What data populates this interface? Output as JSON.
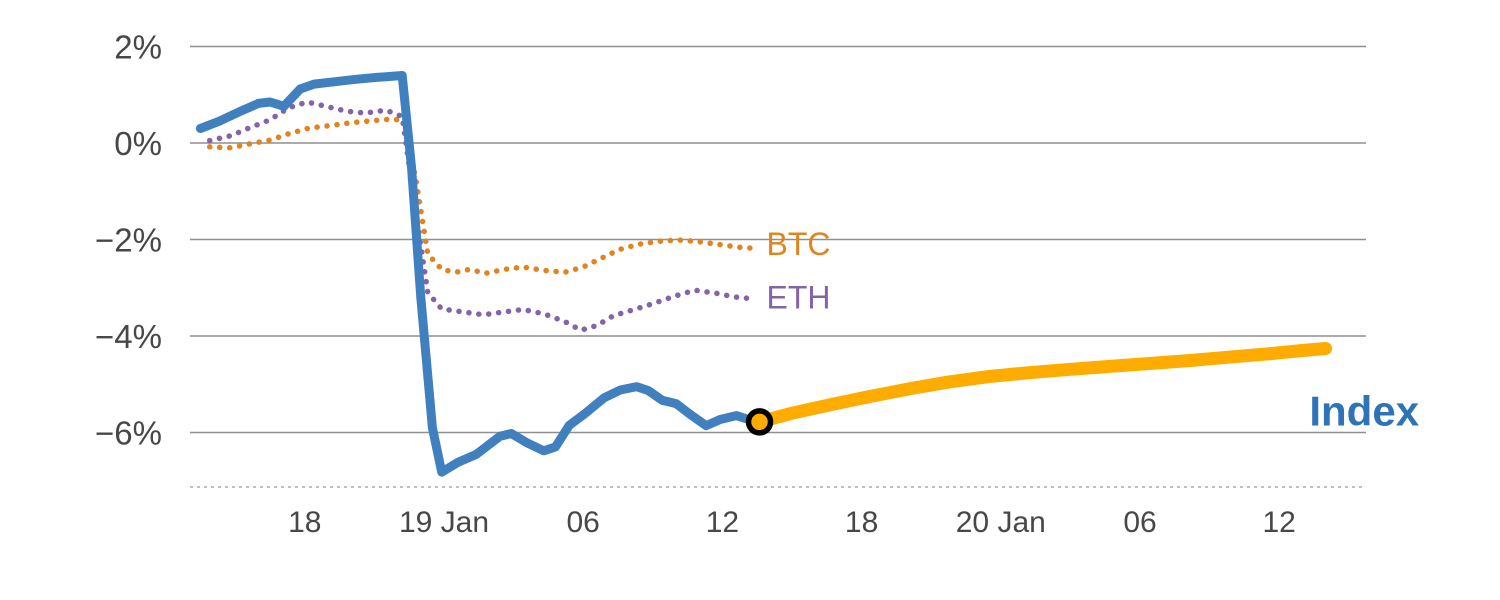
{
  "chart_data": {
    "type": "line",
    "title": "",
    "xlabel": "",
    "ylabel": "",
    "x_unit": "hours, t=12 corresponds to 19 Jan 00:00",
    "xlim": [
      0.8,
      51.5
    ],
    "ylim": [
      -7.3,
      2.4
    ],
    "grid": "horizontal",
    "legend_position": "inline-labels",
    "background_color": "#ffffff",
    "y_ticks": [
      {
        "value": 2,
        "label": "2%"
      },
      {
        "value": 0,
        "label": "0%"
      },
      {
        "value": -2,
        "label": "−2%"
      },
      {
        "value": -4,
        "label": "−4%"
      },
      {
        "value": -6,
        "label": "−6%"
      }
    ],
    "x_ticks": [
      {
        "t": 6,
        "label": "18"
      },
      {
        "t": 12,
        "label": "19 Jan"
      },
      {
        "t": 18,
        "label": "06"
      },
      {
        "t": 24,
        "label": "12"
      },
      {
        "t": 30,
        "label": "18"
      },
      {
        "t": 36,
        "label": "20 Jan"
      },
      {
        "t": 42,
        "label": "06"
      },
      {
        "t": 48,
        "label": "12"
      }
    ],
    "series": [
      {
        "id": "btc",
        "name": "BTC",
        "color": "#DF8420",
        "style": "dotted",
        "width": 5.5,
        "points": [
          [
            1.9,
            -0.08
          ],
          [
            2.8,
            -0.1
          ],
          [
            3.6,
            -0.02
          ],
          [
            4.5,
            0.06
          ],
          [
            5.3,
            0.19
          ],
          [
            6.2,
            0.31
          ],
          [
            7.1,
            0.36
          ],
          [
            8.0,
            0.42
          ],
          [
            8.9,
            0.46
          ],
          [
            9.8,
            0.5
          ],
          [
            10.3,
            0.45
          ],
          [
            10.8,
            -0.8
          ],
          [
            11.3,
            -2.3
          ],
          [
            11.9,
            -2.62
          ],
          [
            12.5,
            -2.68
          ],
          [
            13.1,
            -2.62
          ],
          [
            13.8,
            -2.7
          ],
          [
            14.6,
            -2.62
          ],
          [
            15.4,
            -2.57
          ],
          [
            16.3,
            -2.64
          ],
          [
            17.2,
            -2.68
          ],
          [
            18.0,
            -2.57
          ],
          [
            18.9,
            -2.36
          ],
          [
            19.6,
            -2.2
          ],
          [
            20.4,
            -2.1
          ],
          [
            21.2,
            -2.04
          ],
          [
            22.1,
            -2.01
          ],
          [
            22.9,
            -2.04
          ],
          [
            23.8,
            -2.1
          ],
          [
            24.7,
            -2.16
          ],
          [
            25.3,
            -2.18
          ]
        ]
      },
      {
        "id": "eth",
        "name": "ETH",
        "color": "#8464A8",
        "style": "dotted",
        "width": 5.5,
        "points": [
          [
            1.9,
            0.05
          ],
          [
            2.8,
            0.15
          ],
          [
            3.6,
            0.31
          ],
          [
            4.5,
            0.48
          ],
          [
            5.3,
            0.73
          ],
          [
            6.1,
            0.85
          ],
          [
            6.9,
            0.76
          ],
          [
            7.8,
            0.66
          ],
          [
            8.6,
            0.62
          ],
          [
            9.5,
            0.68
          ],
          [
            10.2,
            0.55
          ],
          [
            10.8,
            -1.5
          ],
          [
            11.3,
            -3.1
          ],
          [
            11.9,
            -3.44
          ],
          [
            12.8,
            -3.5
          ],
          [
            13.7,
            -3.56
          ],
          [
            14.6,
            -3.5
          ],
          [
            15.4,
            -3.45
          ],
          [
            16.3,
            -3.54
          ],
          [
            17.2,
            -3.7
          ],
          [
            17.9,
            -3.88
          ],
          [
            18.6,
            -3.78
          ],
          [
            19.3,
            -3.58
          ],
          [
            20.2,
            -3.45
          ],
          [
            21.0,
            -3.33
          ],
          [
            21.9,
            -3.18
          ],
          [
            22.8,
            -3.05
          ],
          [
            23.7,
            -3.11
          ],
          [
            24.5,
            -3.19
          ],
          [
            25.3,
            -3.23
          ]
        ]
      },
      {
        "id": "index",
        "name": "Index",
        "color": "#4080BF",
        "style": "solid",
        "width": 9,
        "points": [
          [
            1.5,
            0.3
          ],
          [
            2.3,
            0.45
          ],
          [
            3.2,
            0.65
          ],
          [
            4.0,
            0.82
          ],
          [
            4.5,
            0.85
          ],
          [
            5.1,
            0.76
          ],
          [
            5.8,
            1.12
          ],
          [
            6.4,
            1.22
          ],
          [
            7.3,
            1.27
          ],
          [
            8.2,
            1.32
          ],
          [
            9.1,
            1.36
          ],
          [
            10.2,
            1.4
          ],
          [
            10.6,
            -0.5
          ],
          [
            11.0,
            -3.2
          ],
          [
            11.5,
            -5.9
          ],
          [
            11.9,
            -6.82
          ],
          [
            12.6,
            -6.62
          ],
          [
            13.4,
            -6.45
          ],
          [
            14.4,
            -6.08
          ],
          [
            14.9,
            -6.02
          ],
          [
            15.6,
            -6.22
          ],
          [
            16.3,
            -6.38
          ],
          [
            16.8,
            -6.3
          ],
          [
            17.4,
            -5.85
          ],
          [
            18.1,
            -5.6
          ],
          [
            18.9,
            -5.28
          ],
          [
            19.6,
            -5.12
          ],
          [
            20.3,
            -5.05
          ],
          [
            20.8,
            -5.13
          ],
          [
            21.4,
            -5.33
          ],
          [
            22.0,
            -5.4
          ],
          [
            22.6,
            -5.62
          ],
          [
            23.3,
            -5.86
          ],
          [
            23.9,
            -5.73
          ],
          [
            24.6,
            -5.65
          ],
          [
            25.2,
            -5.74
          ],
          [
            25.6,
            -5.78
          ]
        ]
      },
      {
        "id": "index-continuation",
        "name": "Index",
        "color": "#FFAC00",
        "style": "solid",
        "width": 13,
        "points": [
          [
            25.6,
            -5.78
          ],
          [
            27.0,
            -5.6
          ],
          [
            28.7,
            -5.42
          ],
          [
            30.4,
            -5.25
          ],
          [
            32.1,
            -5.09
          ],
          [
            33.8,
            -4.95
          ],
          [
            35.5,
            -4.84
          ],
          [
            37.2,
            -4.76
          ],
          [
            39.0,
            -4.69
          ],
          [
            40.7,
            -4.63
          ],
          [
            42.4,
            -4.57
          ],
          [
            44.1,
            -4.51
          ],
          [
            45.8,
            -4.44
          ],
          [
            47.5,
            -4.37
          ],
          [
            49.0,
            -4.3
          ],
          [
            50.0,
            -4.26
          ]
        ]
      }
    ],
    "marker": {
      "t": 25.6,
      "v": -5.78,
      "ring_color": "#000000",
      "fill_color": "#FFAC00"
    },
    "annotations": [
      {
        "text": "BTC",
        "t": 25.9,
        "v": -2.15,
        "color": "#DF8420",
        "style": "normal"
      },
      {
        "text": "ETH",
        "t": 25.9,
        "v": -3.25,
        "color": "#8464A8",
        "style": "normal"
      },
      {
        "text": "Index",
        "t": 49.3,
        "v": -5.62,
        "color": "#2E74B5",
        "style": "large"
      }
    ]
  }
}
